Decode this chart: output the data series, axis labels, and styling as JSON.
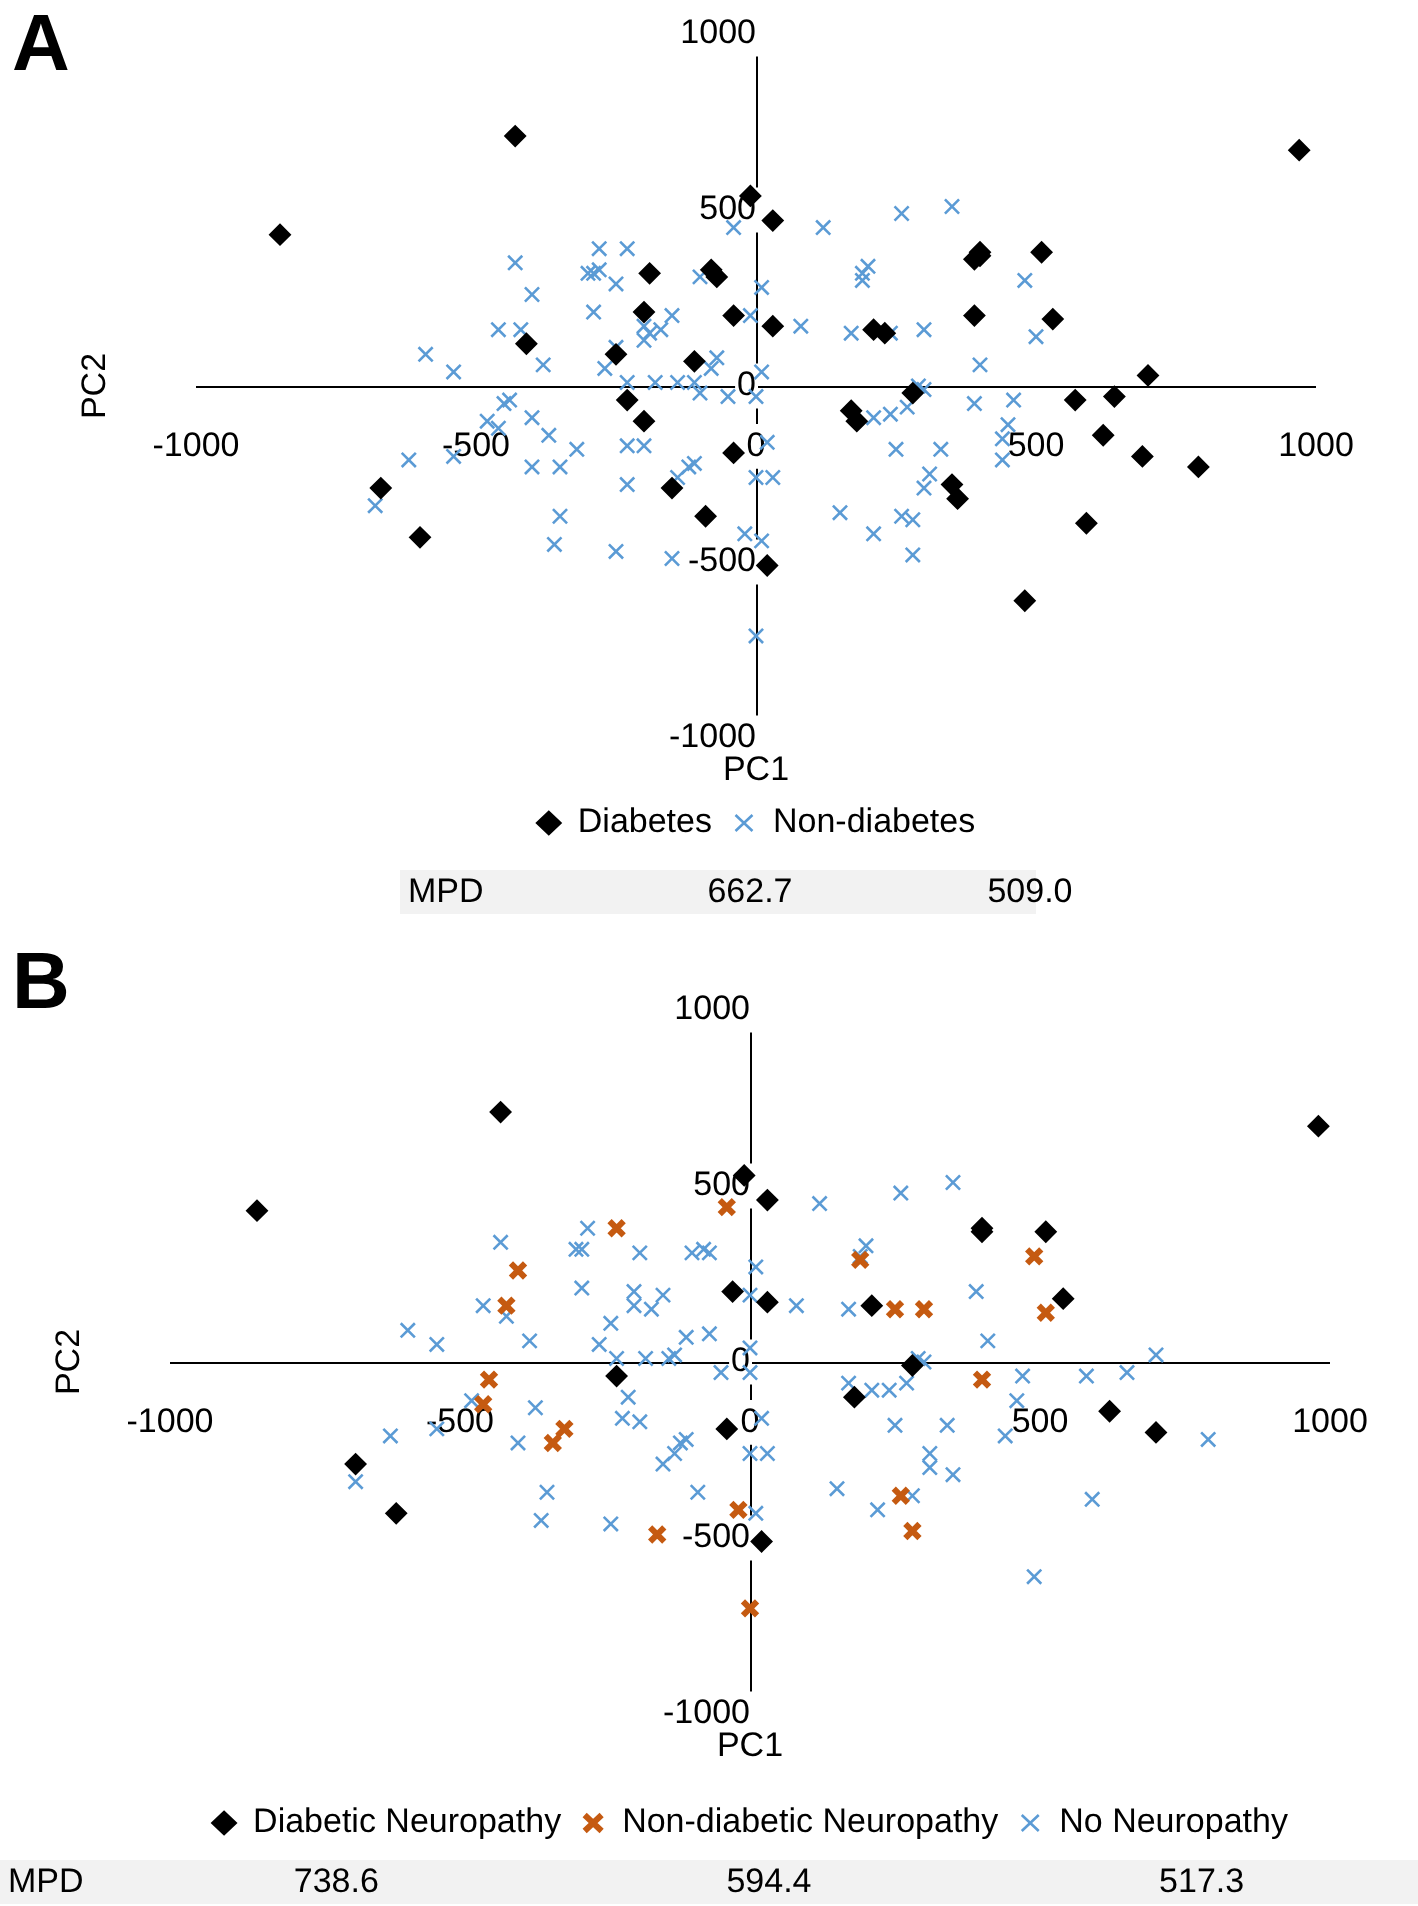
{
  "chart_data": [
    {
      "type": "scatter",
      "title": "A",
      "xlabel": "PC1",
      "ylabel": "PC2",
      "xlim": [
        -1000,
        1000
      ],
      "ylim": [
        -1000,
        1000
      ],
      "xticks": [
        -1000,
        -500,
        0,
        500,
        1000
      ],
      "yticks": [
        -1000,
        -500,
        0,
        500,
        1000
      ],
      "grid": false,
      "legend": "bottom",
      "annotations": [
        "MPD",
        "662.7",
        "509.0"
      ],
      "series": [
        {
          "name": "Diabetes",
          "color": "#000000",
          "marker": "diamond",
          "x": [
            -430,
            -850,
            -10,
            30,
            -190,
            -80,
            -70,
            970,
            400,
            400,
            390,
            510,
            -200,
            -40,
            30,
            -410,
            -250,
            -110,
            210,
            230,
            390,
            530,
            700,
            280,
            -230,
            -200,
            170,
            180,
            570,
            640,
            620,
            690,
            790,
            -40,
            -670,
            -150,
            350,
            360,
            -90,
            -600,
            590,
            20,
            480
          ],
          "values": [
            710,
            430,
            540,
            470,
            320,
            330,
            310,
            670,
            380,
            370,
            360,
            380,
            210,
            200,
            170,
            120,
            90,
            70,
            160,
            150,
            200,
            190,
            30,
            -20,
            -40,
            -100,
            -70,
            -100,
            -40,
            -30,
            -140,
            -200,
            -230,
            -190,
            -290,
            -290,
            -280,
            -320,
            -370,
            -430,
            -390,
            -510,
            -610
          ]
        },
        {
          "name": "Non-diabetes",
          "color": "#5b9bd5",
          "marker": "cross",
          "x": [
            -40,
            120,
            260,
            350,
            -280,
            -230,
            -430,
            -290,
            -300,
            -280,
            -250,
            -100,
            200,
            190,
            190,
            10,
            480,
            -400,
            -290,
            -150,
            -10,
            80,
            -460,
            -420,
            170,
            240,
            300,
            500,
            -200,
            -190,
            -170,
            -200,
            -250,
            -590,
            -540,
            -380,
            -70,
            -80,
            400,
            -270,
            -230,
            -180,
            -140,
            -110,
            -100,
            10,
            290,
            300,
            -450,
            -440,
            390,
            460,
            -50,
            0,
            -480,
            -460,
            -400,
            -370,
            210,
            240,
            270,
            450,
            440,
            -320,
            -620,
            -540,
            -230,
            -200,
            250,
            330,
            20,
            440,
            -400,
            -350,
            -110,
            -120,
            -140,
            310,
            300,
            0,
            30,
            -230,
            -350,
            150,
            210,
            260,
            280,
            -360,
            -250,
            -150,
            -20,
            10,
            280,
            0,
            -680
          ],
          "values": [
            450,
            450,
            490,
            510,
            390,
            390,
            350,
            320,
            320,
            330,
            290,
            310,
            340,
            320,
            300,
            280,
            300,
            260,
            210,
            200,
            200,
            170,
            160,
            160,
            150,
            150,
            160,
            140,
            170,
            150,
            160,
            130,
            110,
            90,
            40,
            60,
            80,
            50,
            60,
            50,
            10,
            10,
            10,
            10,
            -20,
            40,
            0,
            -10,
            -50,
            -40,
            -50,
            -40,
            -30,
            -30,
            -100,
            -120,
            -90,
            -140,
            -90,
            -80,
            -60,
            -110,
            -150,
            -180,
            -210,
            -200,
            -170,
            -170,
            -180,
            -180,
            -160,
            -210,
            -230,
            -230,
            -220,
            -230,
            -260,
            -250,
            -290,
            -260,
            -260,
            -280,
            -370,
            -360,
            -420,
            -370,
            -380,
            -450,
            -470,
            -490,
            -420,
            -440,
            -480,
            -710,
            -340
          ]
        }
      ]
    },
    {
      "type": "scatter",
      "title": "B",
      "xlabel": "PC1",
      "ylabel": "PC2",
      "xlim": [
        -1000,
        1000
      ],
      "ylim": [
        -1000,
        1000
      ],
      "xticks": [
        -1000,
        -500,
        0,
        500,
        1000
      ],
      "yticks": [
        -1000,
        -500,
        0,
        500,
        1000
      ],
      "grid": false,
      "legend": "bottom",
      "annotations": [
        "MPD",
        "738.6",
        "594.4",
        "517.3"
      ],
      "series": [
        {
          "name": "Diabetic Neuropathy",
          "color": "#000000",
          "marker": "diamond",
          "x": [
            -430,
            -850,
            -10,
            30,
            980,
            400,
            400,
            510,
            -30,
            30,
            540,
            210,
            -230,
            180,
            280,
            620,
            700,
            -40,
            -680,
            -610,
            20
          ],
          "values": [
            710,
            430,
            530,
            460,
            670,
            370,
            380,
            370,
            200,
            170,
            180,
            160,
            -40,
            -100,
            -10,
            -140,
            -200,
            -190,
            -290,
            -430,
            -510
          ]
        },
        {
          "name": "Non-diabetic Neuropathy",
          "color": "#c55a11",
          "marker": "cross",
          "x": [
            -40,
            -230,
            -400,
            -420,
            190,
            250,
            300,
            490,
            510,
            -450,
            -460,
            -320,
            -340,
            400,
            -20,
            -160,
            260,
            280,
            0
          ],
          "values": [
            440,
            380,
            260,
            160,
            290,
            150,
            150,
            300,
            140,
            -50,
            -120,
            -190,
            -230,
            -50,
            -420,
            -490,
            -380,
            -480,
            -700
          ]
        },
        {
          "name": "No Neuropathy",
          "color": "#5b9bd5",
          "marker": "cross",
          "x": [
            260,
            350,
            120,
            -280,
            -430,
            -300,
            -290,
            -190,
            -100,
            -80,
            -70,
            200,
            190,
            10,
            -290,
            -200,
            -150,
            -200,
            -170,
            -460,
            -420,
            0,
            80,
            170,
            390,
            410,
            -590,
            -540,
            -380,
            -260,
            -240,
            -70,
            -110,
            -230,
            -180,
            -140,
            -130,
            0,
            -50,
            0,
            290,
            300,
            270,
            170,
            210,
            240,
            470,
            580,
            650,
            700,
            460,
            440,
            790,
            -480,
            -370,
            -540,
            -620,
            -400,
            -210,
            -220,
            -190,
            -110,
            -120,
            -130,
            -150,
            -90,
            20,
            0,
            30,
            250,
            340,
            310,
            310,
            350,
            150,
            220,
            280,
            590,
            -350,
            -360,
            -240,
            10,
            490,
            -680
          ],
          "values": [
            480,
            510,
            450,
            380,
            340,
            320,
            320,
            310,
            310,
            320,
            310,
            330,
            300,
            270,
            210,
            200,
            190,
            160,
            150,
            160,
            130,
            190,
            160,
            150,
            200,
            60,
            90,
            50,
            60,
            50,
            110,
            80,
            70,
            10,
            10,
            10,
            20,
            40,
            -30,
            -30,
            10,
            0,
            -60,
            -60,
            -80,
            -80,
            -40,
            -40,
            -30,
            20,
            -110,
            -210,
            -220,
            -110,
            -130,
            -190,
            -210,
            -230,
            -100,
            -160,
            -170,
            -220,
            -230,
            -260,
            -290,
            -370,
            -160,
            -260,
            -260,
            -180,
            -180,
            -260,
            -300,
            -320,
            -360,
            -420,
            -380,
            -390,
            -370,
            -450,
            -460,
            -430,
            -610,
            -340
          ]
        }
      ]
    }
  ]
}
